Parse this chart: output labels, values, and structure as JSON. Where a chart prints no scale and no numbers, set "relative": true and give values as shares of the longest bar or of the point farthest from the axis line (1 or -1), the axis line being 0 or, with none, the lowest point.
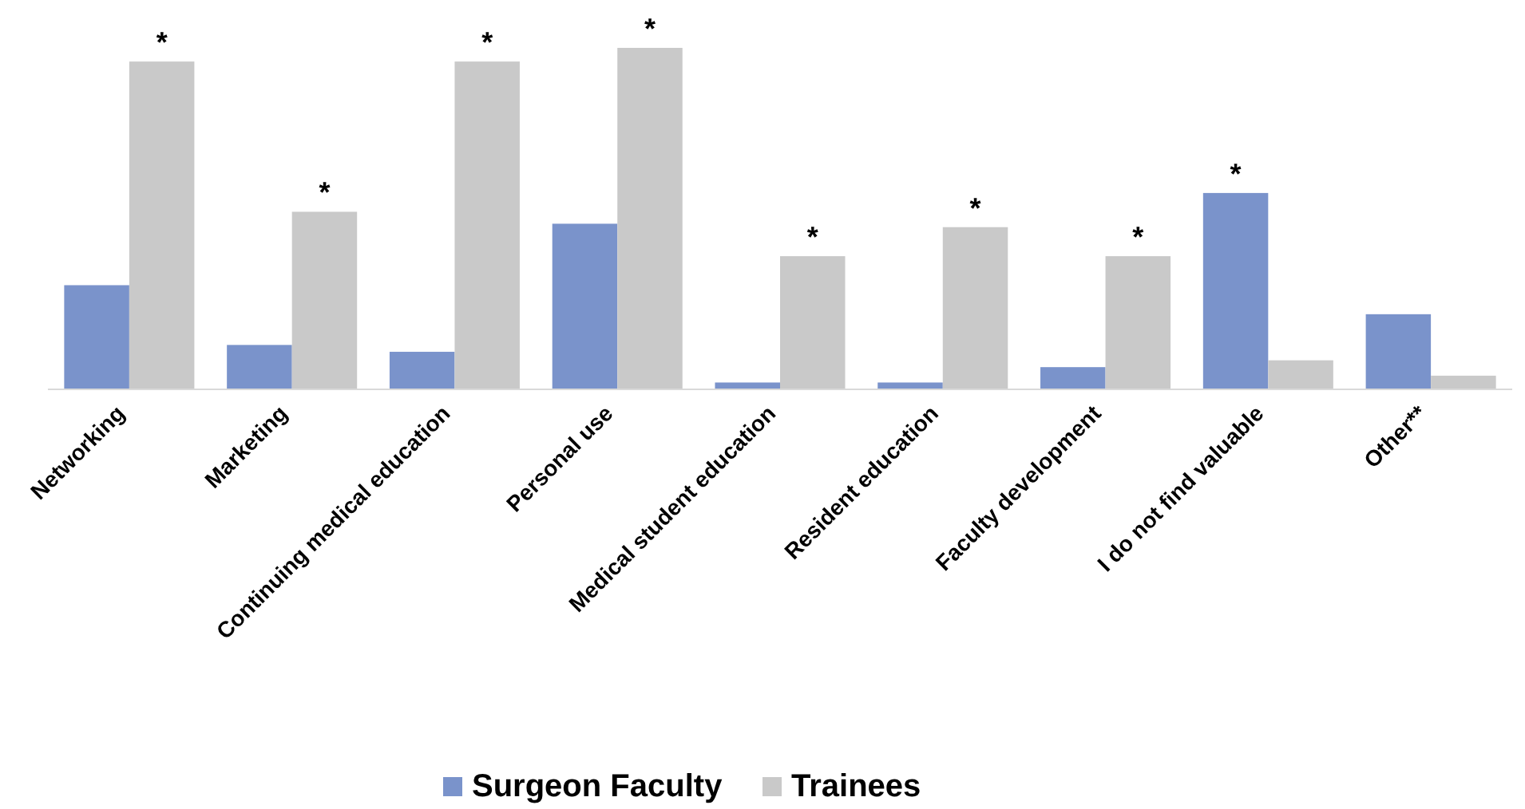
{
  "chart_data": {
    "type": "bar",
    "relative": true,
    "categories": [
      "Networking",
      "Marketing",
      "Continuing medical education",
      "Personal use",
      "Medical student education",
      "Resident education",
      "Faculty development",
      "I do not find valuable",
      "Other**"
    ],
    "series": [
      {
        "name": "Surgeon Faculty",
        "color": "#7a93cb",
        "values": [
          0.305,
          0.13,
          0.11,
          0.485,
          0.02,
          0.02,
          0.065,
          0.575,
          0.22
        ]
      },
      {
        "name": "Trainees",
        "color": "#c9c9c9",
        "values": [
          0.96,
          0.52,
          0.96,
          1,
          0.39,
          0.475,
          0.39,
          0.085,
          0.04
        ]
      }
    ],
    "annotations": [
      {
        "text": "*",
        "x": "Networking",
        "y": 0.96
      },
      {
        "text": "*",
        "x": "Marketing",
        "y": 0.52
      },
      {
        "text": "*",
        "x": "Continuing medical education",
        "y": 0.96
      },
      {
        "text": "*",
        "x": "Personal use",
        "y": 1
      },
      {
        "text": "*",
        "x": "Medical student education",
        "y": 0.39
      },
      {
        "text": "*",
        "x": "Resident education",
        "y": 0.475
      },
      {
        "text": "*",
        "x": "Faculty development",
        "y": 0.39
      },
      {
        "text": "*",
        "x": "I do not find valuable",
        "y": 0.575
      }
    ],
    "legend": "bottom"
  }
}
